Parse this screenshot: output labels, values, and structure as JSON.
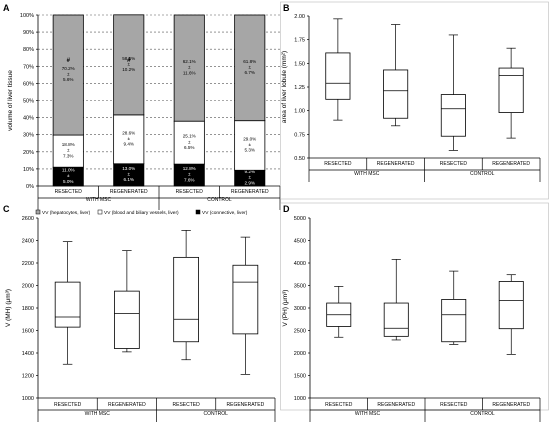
{
  "chart_data": [
    {
      "panel": "A",
      "type": "bar",
      "stacked": true,
      "percent": true,
      "ylabel": "volume of liver tissue",
      "ylim": [
        0,
        100
      ],
      "yticks": [
        "0%",
        "10%",
        "20%",
        "30%",
        "40%",
        "50%",
        "60%",
        "70%",
        "80%",
        "90%",
        "100%"
      ],
      "grid": true,
      "categories": [
        "RESECTED",
        "REGENERATED",
        "RESECTED",
        "REGENERATED"
      ],
      "groups": [
        {
          "label": "WITH MSC",
          "categories": [
            0,
            1
          ]
        },
        {
          "label": "CONTROL",
          "categories": [
            2,
            3
          ]
        }
      ],
      "series": [
        {
          "name": "VV (connective, liver)",
          "color": "#000000",
          "values": [
            11.0,
            13.0,
            12.8,
            9.2
          ],
          "labels": [
            [
              "11.0%",
              "±",
              "5.0%"
            ],
            [
              "13.0%",
              "±",
              "6.1%"
            ],
            [
              "12.8%",
              "±",
              "7.6%"
            ],
            [
              "9.2%",
              "±",
              "2.9%"
            ]
          ]
        },
        {
          "name": "VV (blood and biliary vessels, liver)",
          "color": "#ffffff",
          "values": [
            18.8,
            28.6,
            25.1,
            29.0
          ],
          "labels": [
            [
              "18.8%",
              "±",
              "7.3%"
            ],
            [
              "28.6%",
              "±",
              "9.4%"
            ],
            [
              "25.1%",
              "±",
              "6.5%"
            ],
            [
              "29.0%",
              "±",
              "5.3%"
            ]
          ]
        },
        {
          "name": "VV (hepatocytes, liver)",
          "color": "#a6a6a6",
          "values": [
            70.2,
            58.5,
            62.1,
            61.8
          ],
          "labels": [
            [
              "70.2%",
              "±",
              "5.6%"
            ],
            [
              "58.5%",
              "±",
              "10.2%"
            ],
            [
              "62.1%",
              "±",
              "11.6%"
            ],
            [
              "61.8%",
              "±",
              "6.7%"
            ]
          ]
        }
      ],
      "markers": [
        "#",
        "#",
        "",
        ""
      ],
      "legend": [
        "VV (hepatocytes, liver)",
        "VV (blood and biliary vessels, liver)",
        "VV (connective, liver)"
      ],
      "legend_position": "bottom"
    },
    {
      "panel": "B",
      "type": "box",
      "ylabel": "area of liver lobule (mm²)",
      "ylim": [
        0.5,
        2.0
      ],
      "yticks": [
        "0.50",
        "0.75",
        "1.00",
        "1.25",
        "1.50",
        "1.75",
        "2.00"
      ],
      "categories": [
        "RESECTED",
        "REGENERATED",
        "RESECTED",
        "REGENERATED"
      ],
      "groups": [
        {
          "label": "WITH MSC",
          "categories": [
            0,
            1
          ]
        },
        {
          "label": "CONTROL",
          "categories": [
            2,
            3
          ]
        }
      ],
      "boxes": [
        {
          "min": 0.9,
          "q1": 1.12,
          "median": 1.29,
          "q3": 1.61,
          "max": 1.97
        },
        {
          "min": 0.84,
          "q1": 0.92,
          "median": 1.21,
          "q3": 1.43,
          "max": 1.91
        },
        {
          "min": 0.58,
          "q1": 0.73,
          "median": 1.02,
          "q3": 1.17,
          "max": 1.8
        },
        {
          "min": 0.71,
          "q1": 0.98,
          "median": 1.37,
          "q3": 1.45,
          "max": 1.66
        }
      ]
    },
    {
      "panel": "C",
      "type": "box",
      "ylabel": "V (MH) (μm³)",
      "ylim": [
        1000,
        2600
      ],
      "yticks": [
        "1000",
        "1200",
        "1400",
        "1600",
        "1800",
        "2000",
        "2200",
        "2400",
        "2600"
      ],
      "categories": [
        "RESECTED",
        "REGENERATED",
        "RESECTED",
        "REGENERATED"
      ],
      "groups": [
        {
          "label": "WITH MSC",
          "categories": [
            0,
            1
          ]
        },
        {
          "label": "CONTROL",
          "categories": [
            2,
            3
          ]
        }
      ],
      "boxes": [
        {
          "min": 1300,
          "q1": 1630,
          "median": 1720,
          "q3": 2030,
          "max": 2390
        },
        {
          "min": 1410,
          "q1": 1440,
          "median": 1750,
          "q3": 1950,
          "max": 2310
        },
        {
          "min": 1340,
          "q1": 1500,
          "median": 1700,
          "q3": 2250,
          "max": 2490
        },
        {
          "min": 1210,
          "q1": 1570,
          "median": 2030,
          "q3": 2180,
          "max": 2430
        }
      ]
    },
    {
      "panel": "D",
      "type": "box",
      "ylabel": "V (PH) (μm³)",
      "ylim": [
        1000,
        5000
      ],
      "yticks": [
        "1000",
        "1500",
        "2000",
        "2500",
        "3000",
        "3500",
        "4000",
        "4500",
        "5000"
      ],
      "categories": [
        "RESECTED",
        "REGENERATED",
        "RESECTED",
        "REGENERATED"
      ],
      "groups": [
        {
          "label": "WITH MSC",
          "categories": [
            0,
            1
          ]
        },
        {
          "label": "CONTROL",
          "categories": [
            2,
            3
          ]
        }
      ],
      "boxes": [
        {
          "min": 2350,
          "q1": 2590,
          "median": 2850,
          "q3": 3110,
          "max": 3480
        },
        {
          "min": 2290,
          "q1": 2370,
          "median": 2550,
          "q3": 3110,
          "max": 4080
        },
        {
          "min": 2190,
          "q1": 2250,
          "median": 2850,
          "q3": 3190,
          "max": 3820
        },
        {
          "min": 1970,
          "q1": 2540,
          "median": 3170,
          "q3": 3590,
          "max": 3740
        }
      ]
    }
  ]
}
